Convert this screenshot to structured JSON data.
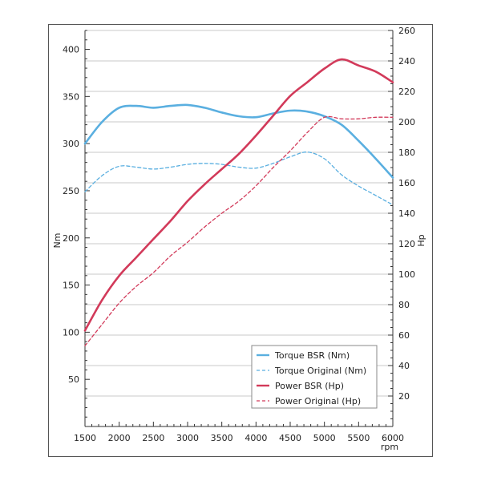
{
  "chart_data": {
    "type": "line",
    "xlabel": "rpm",
    "ylabel_left": "Nm",
    "ylabel_right": "Hp",
    "x_ticks": [
      1500,
      2000,
      2500,
      3000,
      3500,
      4000,
      4500,
      5000,
      5500,
      6000
    ],
    "y_left_ticks": [
      50,
      100,
      150,
      200,
      250,
      300,
      350,
      400
    ],
    "y_right_ticks": [
      20,
      40,
      60,
      80,
      100,
      120,
      140,
      160,
      180,
      200,
      220,
      240,
      260
    ],
    "xlim": [
      1500,
      6000
    ],
    "ylim_left": [
      0,
      420
    ],
    "ylim_right": [
      0,
      260
    ],
    "grid": true,
    "legend_position": "bottom-right",
    "series": [
      {
        "name": "Torque BSR (Nm)",
        "axis": "left",
        "style": "solid",
        "color": "#5aafe0",
        "x": [
          1500,
          1750,
          2000,
          2250,
          2500,
          2750,
          3000,
          3250,
          3500,
          3750,
          4000,
          4250,
          4500,
          4750,
          5000,
          5250,
          5500,
          5750,
          6000
        ],
        "y": [
          300,
          323,
          338,
          340,
          338,
          340,
          341,
          338,
          333,
          329,
          328,
          332,
          335,
          334,
          329,
          320,
          303,
          284,
          264
        ]
      },
      {
        "name": "Torque Original (Nm)",
        "axis": "left",
        "style": "dashed",
        "color": "#5aafe0",
        "x": [
          1500,
          1750,
          2000,
          2250,
          2500,
          2750,
          3000,
          3250,
          3500,
          3750,
          4000,
          4250,
          4500,
          4750,
          5000,
          5250,
          5500,
          5750,
          6000
        ],
        "y": [
          249,
          266,
          276,
          275,
          273,
          275,
          278,
          279,
          278,
          275,
          274,
          279,
          286,
          291,
          284,
          267,
          255,
          245,
          235
        ]
      },
      {
        "name": "Power BSR (Hp)",
        "axis": "right",
        "style": "solid",
        "color": "#d23a5a",
        "x": [
          1500,
          1750,
          2000,
          2250,
          2500,
          2750,
          3000,
          3250,
          3500,
          3750,
          4000,
          4250,
          4500,
          4750,
          5000,
          5250,
          5500,
          5750,
          6000
        ],
        "y": [
          63,
          83,
          99,
          111,
          123,
          135,
          148,
          159,
          169,
          179,
          191,
          204,
          217,
          226,
          235,
          241,
          237,
          233,
          226
        ]
      },
      {
        "name": "Power Original (Hp)",
        "axis": "right",
        "style": "dashed",
        "color": "#d23a5a",
        "x": [
          1500,
          1750,
          2000,
          2250,
          2500,
          2750,
          3000,
          3250,
          3500,
          3750,
          4000,
          4250,
          4500,
          4750,
          5000,
          5250,
          5500,
          5750,
          6000
        ],
        "y": [
          53,
          67,
          81,
          92,
          101,
          112,
          121,
          131,
          140,
          148,
          158,
          170,
          181,
          193,
          203,
          202,
          202,
          203,
          203
        ]
      }
    ]
  }
}
